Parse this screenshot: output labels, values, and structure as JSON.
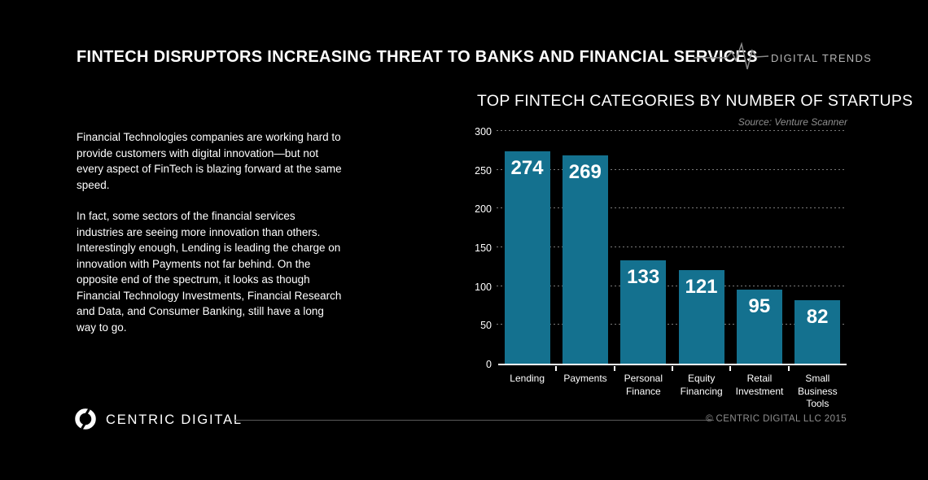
{
  "header": {
    "title": "FINTECH DISRUPTORS INCREASING THREAT TO BANKS AND FINANCIAL SERVICES",
    "tag": "DIGITAL TRENDS",
    "pulse_icon": "heartbeat-pulse-icon"
  },
  "intro": {
    "paragraph1": "Financial Technologies companies are working hard to provide customers with digital innovation—but not every aspect of FinTech is blazing forward at the same speed.",
    "paragraph2": "In fact, some sectors of the financial services industries are seeing more innovation than others. Interestingly enough, Lending is leading the charge on innovation with Payments not far behind. On the opposite end of the spectrum, it looks as though Financial Technology Investments, Financial Research and Data, and Consumer Banking, still have a long way to go."
  },
  "chart_data": {
    "type": "bar",
    "title": "TOP FINTECH CATEGORIES BY NUMBER OF STARTUPS",
    "source": "Source: Venture Scanner",
    "categories": [
      "Lending",
      "Payments",
      "Personal Finance",
      "Equity Financing",
      "Retail Investment",
      "Small Business Tools"
    ],
    "values": [
      274,
      269,
      133,
      121,
      95,
      82
    ],
    "xlabel": "",
    "ylabel": "",
    "ylim": [
      0,
      300
    ],
    "yticks": [
      0,
      50,
      100,
      150,
      200,
      250,
      300
    ],
    "grid": "horizontal-dashed",
    "legend": "none",
    "bar_color": "#14718F",
    "value_label_color": "#FFFFFF"
  },
  "footer": {
    "brand": "CENTRIC DIGITAL",
    "logo_icon": "centric-digital-ring-icon",
    "copyright": "© CENTRIC DIGITAL LLC 2015"
  },
  "colors": {
    "background": "#000000",
    "text_primary": "#FFFFFF",
    "text_muted": "#9A9A9A",
    "tag_text": "#B5B5B5",
    "source_text": "#8F8F8F",
    "bar": "#14718F",
    "gridline": "#7A7A7A",
    "divider": "#5A5A5A"
  }
}
